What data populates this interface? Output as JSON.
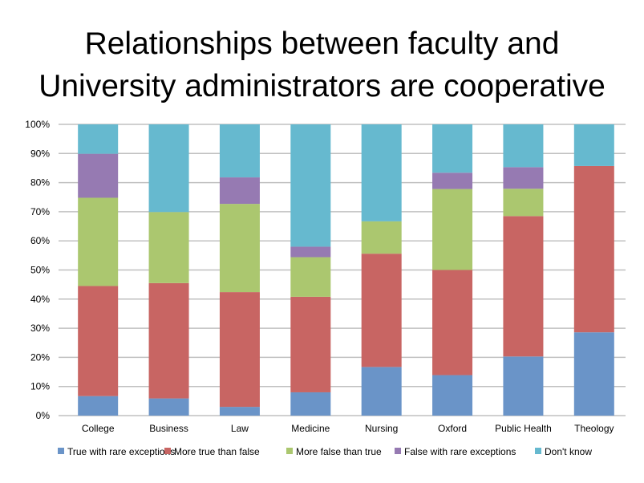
{
  "chart_data": {
    "type": "bar",
    "stacked": true,
    "percent": true,
    "title_lines": [
      "Relationships between faculty and",
      "University administrators are cooperative"
    ],
    "xlabel": "",
    "ylabel": "",
    "ylim": [
      0,
      100
    ],
    "yticks": [
      "0%",
      "10%",
      "20%",
      "30%",
      "40%",
      "50%",
      "60%",
      "70%",
      "80%",
      "90%",
      "100%"
    ],
    "grid": true,
    "legend_position": "bottom",
    "categories": [
      "College",
      "Business",
      "Law",
      "Medicine",
      "Nursing",
      "Oxford",
      "Public Health",
      "Theology"
    ],
    "series": [
      {
        "name": "True with rare exceptions",
        "color": "#6a94c8",
        "values": [
          6.7,
          5.9,
          3.0,
          8.0,
          16.7,
          13.9,
          20.3,
          28.6
        ]
      },
      {
        "name": "More true than false",
        "color": "#c86563",
        "values": [
          37.8,
          39.6,
          39.4,
          32.8,
          38.9,
          36.1,
          48.2,
          57.1
        ]
      },
      {
        "name": "More false than true",
        "color": "#abc76f",
        "values": [
          30.3,
          24.4,
          30.3,
          13.6,
          11.1,
          27.8,
          9.4,
          0
        ]
      },
      {
        "name": "False with rare exceptions",
        "color": "#967ab2",
        "values": [
          15.1,
          0,
          9.1,
          3.6,
          0,
          5.6,
          7.4,
          0
        ]
      },
      {
        "name": "Don't know",
        "color": "#66b9cf",
        "values": [
          10.1,
          30.1,
          18.2,
          42.0,
          33.3,
          16.6,
          14.7,
          14.3
        ]
      }
    ]
  }
}
